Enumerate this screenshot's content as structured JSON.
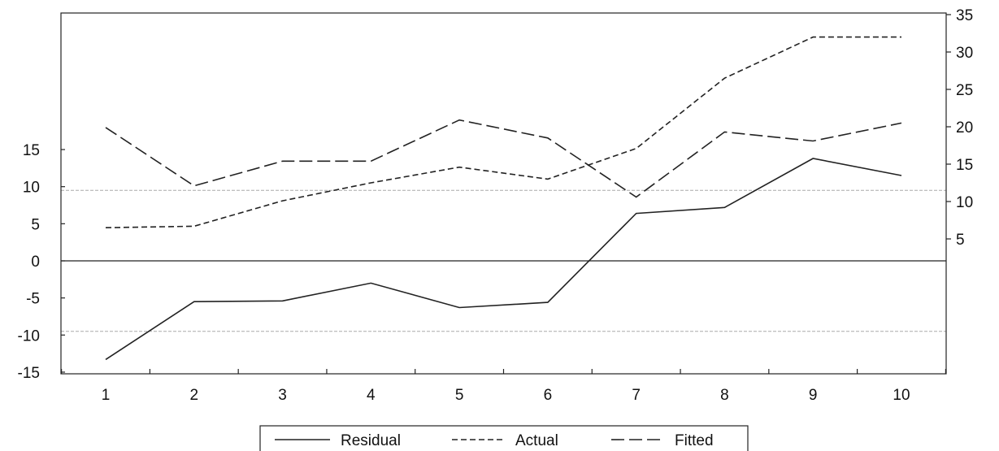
{
  "chart_data": {
    "type": "line",
    "title": "",
    "xlabel": "",
    "ylabel": "",
    "x": [
      1,
      2,
      3,
      4,
      5,
      6,
      7,
      8,
      9,
      10
    ],
    "x_tick_labels": [
      "1",
      "2",
      "3",
      "4",
      "5",
      "6",
      "7",
      "8",
      "9",
      "10"
    ],
    "left_axis": {
      "ylim": [
        -15,
        15
      ],
      "tick_labels": [
        "-15",
        "-10",
        "-5",
        "0",
        "5",
        "10",
        "15"
      ],
      "ticks": [
        -15,
        -10,
        -5,
        0,
        5,
        10,
        15
      ]
    },
    "right_axis": {
      "ylim": [
        5,
        35
      ],
      "tick_labels": [
        "5",
        "10",
        "15",
        "20",
        "25",
        "30",
        "35"
      ],
      "ticks": [
        5,
        10,
        15,
        20,
        25,
        30,
        35
      ]
    },
    "reference_lines": {
      "zero": 0,
      "upper_band": 9.5,
      "lower_band": -9.5
    },
    "series": [
      {
        "name": "Residual",
        "axis": "left",
        "style": "solid",
        "values": [
          -13.3,
          -5.5,
          -5.4,
          -3.0,
          -6.3,
          -5.6,
          6.4,
          7.2,
          13.8,
          11.5
        ]
      },
      {
        "name": "Actual",
        "axis": "right",
        "style": "short-dash",
        "values": [
          6.5,
          6.7,
          10.1,
          12.5,
          14.6,
          13.0,
          17.1,
          26.5,
          32.0,
          32.0
        ]
      },
      {
        "name": "Fitted",
        "axis": "right",
        "style": "long-dash",
        "values": [
          19.9,
          12.1,
          15.4,
          15.4,
          20.9,
          18.5,
          10.6,
          19.3,
          18.1,
          20.5
        ]
      }
    ],
    "grid": false,
    "legend": {
      "placement": "bottom-center",
      "entries": [
        "Residual",
        "Actual",
        "Fitted"
      ]
    },
    "colors": {
      "line": "#222222",
      "reference": "#aaaaaa",
      "axis": "#222222"
    }
  }
}
